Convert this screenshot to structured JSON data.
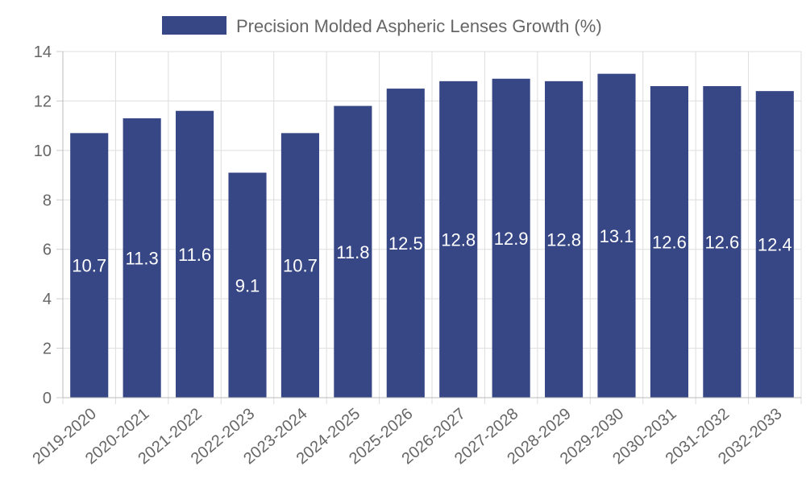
{
  "chart_data": {
    "type": "bar",
    "categories": [
      "2019-2020",
      "2020-2021",
      "2021-2022",
      "2022-2023",
      "2023-2024",
      "2024-2025",
      "2025-2026",
      "2026-2027",
      "2027-2028",
      "2028-2029",
      "2029-2030",
      "2030-2031",
      "2031-2032",
      "2032-2033"
    ],
    "series": [
      {
        "name": "Precision Molded Aspheric Lenses Growth (%)",
        "values": [
          10.7,
          11.3,
          11.6,
          9.1,
          10.7,
          11.8,
          12.5,
          12.8,
          12.9,
          12.8,
          13.1,
          12.6,
          12.6,
          12.4
        ],
        "color": "#374785"
      }
    ],
    "ylim": [
      0,
      14
    ],
    "yticks": [
      "0",
      "2",
      "4",
      "6",
      "8",
      "10",
      "12",
      "14"
    ],
    "grid": true,
    "legend_position": "top",
    "data_labels": true
  }
}
